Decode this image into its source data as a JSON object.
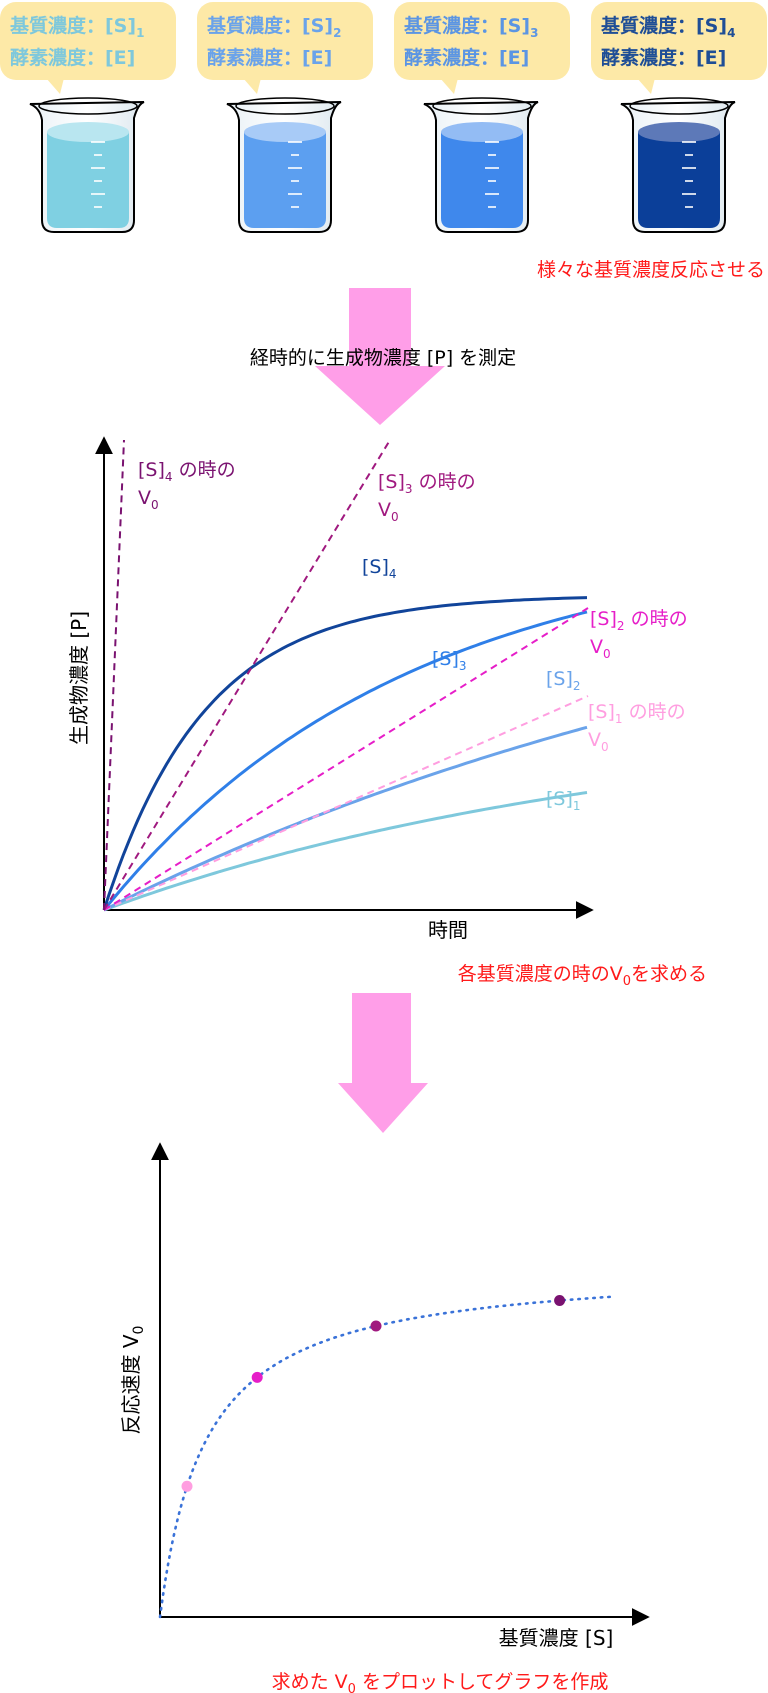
{
  "beakers": [
    {
      "substrate_label": "基質濃度：[S]",
      "substrate_sub": "1",
      "enzyme_label": "酵素濃度：[E]",
      "label_color": "#7ec8dc",
      "liquid_color": "#7fd0e2",
      "liquid_top_color": "#b9e6f0"
    },
    {
      "substrate_label": "基質濃度：[S]",
      "substrate_sub": "2",
      "enzyme_label": "酵素濃度：[E]",
      "label_color": "#6aa3ea",
      "liquid_color": "#5c9ff0",
      "liquid_top_color": "#a8cbf7"
    },
    {
      "substrate_label": "基質濃度：[S]",
      "substrate_sub": "3",
      "enzyme_label": "酵素濃度：[E]",
      "label_color": "#5b95e3",
      "liquid_color": "#3f88ec",
      "liquid_top_color": "#93bcf4"
    },
    {
      "substrate_label": "基質濃度：[S]",
      "substrate_sub": "4",
      "enzyme_label": "酵素濃度：[E]",
      "label_color": "#1f4e96",
      "liquid_color": "#0b3f99",
      "liquid_top_color": "#5d79b8"
    }
  ],
  "step1_note": "様々な基質濃度反応させる",
  "step2_caption": "経時的に生成物濃度 [P] を測定",
  "step3_note": "各基質濃度の時のV",
  "step3_note_sub": "0",
  "step3_note_tail": "を求める",
  "step4_note": "求めた V",
  "step4_note_sub": "0",
  "step4_note_tail": " をプロットしてグラフを作成",
  "colors": {
    "note_red": "#ff1a1a",
    "arrow_pink": "#ff9ee8",
    "axis": "#000000",
    "s1": "#7ec8dc",
    "s2": "#6aa3ea",
    "s3": "#2f7fe8",
    "s4": "#11449a",
    "v0_s1": "#ff9ee0",
    "v0_s2": "#e61ec8",
    "v0_s3": "#a0197f",
    "v0_s4": "#7a1270",
    "mm_curve": "#3a72d8"
  },
  "chart_data": [
    {
      "type": "line",
      "title": "",
      "xlabel": "時間",
      "ylabel": "生成物濃度 [P]",
      "series": [
        {
          "name": "[S]",
          "sub": "1",
          "kind": "curve",
          "vmax": 100,
          "k": 2.0
        },
        {
          "name": "[S]",
          "sub": "2",
          "kind": "curve",
          "vmax": 100,
          "k": 1.0
        },
        {
          "name": "[S]",
          "sub": "3",
          "kind": "curve",
          "vmax": 100,
          "k": 1.0
        },
        {
          "name": "[S]",
          "sub": "4",
          "kind": "curve",
          "vmax": 100,
          "k": 1.0
        }
      ],
      "tangents": [
        {
          "name": "[S]",
          "sub": "1",
          "tail": " の時の",
          "line2": "V",
          "line2_sub": "0"
        },
        {
          "name": "[S]",
          "sub": "2",
          "tail": " の時の",
          "line2": "V",
          "line2_sub": "0"
        },
        {
          "name": "[S]",
          "sub": "3",
          "tail": " の時の",
          "line2": "V",
          "line2_sub": "0"
        },
        {
          "name": "[S]",
          "sub": "4",
          "tail": " の時の",
          "line2": "V",
          "line2_sub": "0"
        }
      ]
    },
    {
      "type": "scatter",
      "title": "",
      "xlabel": "基質濃度 [S]",
      "ylabel": "反応速度 V",
      "ylabel_sub": "0",
      "points": [
        {
          "x": 0.5,
          "y": 0.33
        },
        {
          "x": 1.8,
          "y": 0.63
        },
        {
          "x": 4.0,
          "y": 0.8
        },
        {
          "x": 7.4,
          "y": 0.88
        }
      ],
      "curve": {
        "vmax": 1.0,
        "km": 1.0
      }
    }
  ]
}
